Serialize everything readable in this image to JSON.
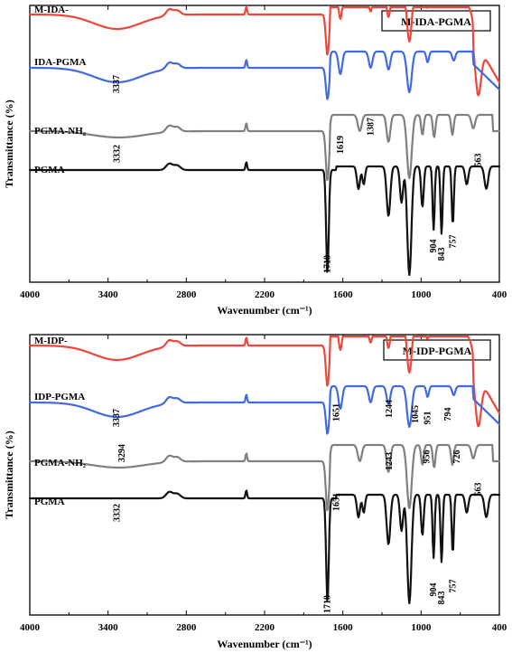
{
  "chart_data": [
    {
      "type": "line",
      "title": "M-IDA-PGMA",
      "xlabel": "Wavenumber (cm⁻¹)",
      "ylabel": "Transmittance (%)",
      "xlim": [
        4000,
        400
      ],
      "x_ticks": [
        "4000",
        "3400",
        "2800",
        "2200",
        "1600",
        "1000",
        "400"
      ],
      "series": [
        {
          "name": "M-IDA-",
          "color": "#f0453a"
        },
        {
          "name": "IDA-PGMA",
          "color": "#4169e1"
        },
        {
          "name": "PGMA-NH₂",
          "color": "#808080"
        },
        {
          "name": "PGMA",
          "color": "#111111"
        }
      ],
      "annotations": [
        {
          "text": "3337",
          "x": 3337
        },
        {
          "text": "1619",
          "x": 1619
        },
        {
          "text": "1387",
          "x": 1387
        },
        {
          "text": "563",
          "x": 563
        },
        {
          "text": "3332",
          "x": 3332
        },
        {
          "text": "1718",
          "x": 1718
        },
        {
          "text": "904",
          "x": 904
        },
        {
          "text": "843",
          "x": 843
        },
        {
          "text": "757",
          "x": 757
        }
      ]
    },
    {
      "type": "line",
      "title": "M-IDP-PGMA",
      "xlabel": "Wavenumber (cm⁻¹)",
      "ylabel": "Transmittance (%)",
      "xlim": [
        4000,
        400
      ],
      "x_ticks": [
        "4000",
        "3400",
        "2800",
        "2200",
        "1600",
        "1000",
        "400"
      ],
      "series": [
        {
          "name": "M-IDP-",
          "color": "#f0453a"
        },
        {
          "name": "IDP-PGMA",
          "color": "#4169e1"
        },
        {
          "name": "PGMA-NH₂",
          "color": "#808080"
        },
        {
          "name": "PGMA",
          "color": "#111111"
        }
      ],
      "annotations": [
        {
          "text": "3337",
          "x": 3337
        },
        {
          "text": "1651",
          "x": 1651
        },
        {
          "text": "1244",
          "x": 1244
        },
        {
          "text": "1045",
          "x": 1045
        },
        {
          "text": "951",
          "x": 951
        },
        {
          "text": "794",
          "x": 794
        },
        {
          "text": "3294",
          "x": 3294
        },
        {
          "text": "1243",
          "x": 1243
        },
        {
          "text": "956",
          "x": 956
        },
        {
          "text": "726",
          "x": 726
        },
        {
          "text": "563",
          "x": 563
        },
        {
          "text": "3332",
          "x": 3332
        },
        {
          "text": "1651",
          "x": 1651
        },
        {
          "text": "1718",
          "x": 1718
        },
        {
          "text": "904",
          "x": 904
        },
        {
          "text": "843",
          "x": 843
        },
        {
          "text": "757",
          "x": 757
        }
      ]
    }
  ]
}
